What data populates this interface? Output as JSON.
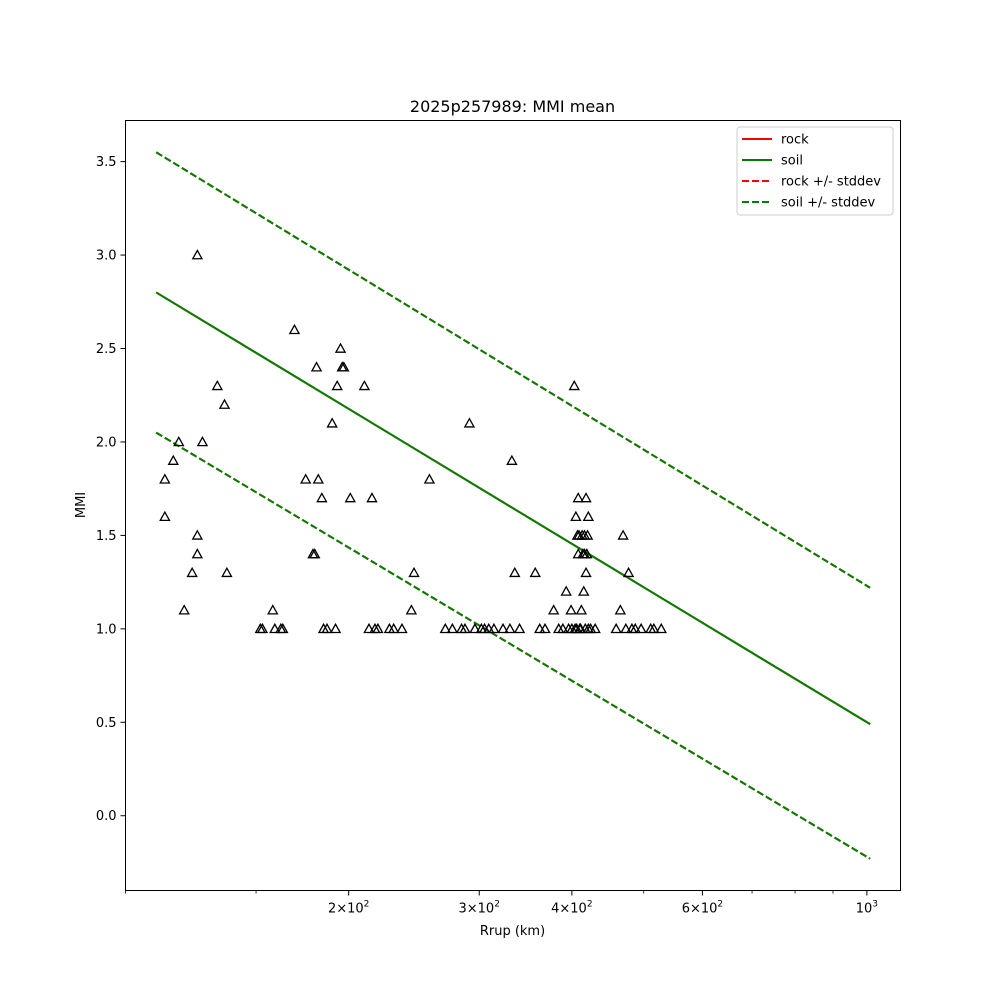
{
  "chart_data": {
    "type": "scatter",
    "title": "2025p257989: MMI mean",
    "xlabel": "Rrup (km)",
    "ylabel": "MMI",
    "xscale": "log",
    "xlim": [
      100,
      1110
    ],
    "ylim": [
      -0.4,
      3.72
    ],
    "grid": false,
    "legend_position": "top-right",
    "x_ticks": [
      {
        "value": 200,
        "label": "2",
        "exp": "2"
      },
      {
        "value": 300,
        "label": "3",
        "exp": "2"
      },
      {
        "value": 400,
        "label": "4",
        "exp": "2"
      },
      {
        "value": 600,
        "label": "6",
        "exp": "2"
      },
      {
        "value": 1000,
        "label": "",
        "exp": "3"
      }
    ],
    "x_minor_ticks": [
      500,
      700,
      800,
      900
    ],
    "y_ticks": [
      {
        "value": 0.0,
        "label": "0.0"
      },
      {
        "value": 0.5,
        "label": "0.5"
      },
      {
        "value": 1.0,
        "label": "1.0"
      },
      {
        "value": 1.5,
        "label": "1.5"
      },
      {
        "value": 2.0,
        "label": "2.0"
      },
      {
        "value": 2.5,
        "label": "2.5"
      },
      {
        "value": 3.0,
        "label": "3.0"
      },
      {
        "value": 3.5,
        "label": "3.5"
      }
    ],
    "lines": [
      {
        "name": "rock",
        "color": "#ff0000",
        "style": "solid",
        "points": [
          [
            110,
            2.8
          ],
          [
            1010,
            0.49
          ]
        ]
      },
      {
        "name": "soil",
        "color": "#008000",
        "style": "solid",
        "points": [
          [
            110,
            2.8
          ],
          [
            1010,
            0.49
          ]
        ]
      },
      {
        "name": "rock +/- stddev",
        "color": "#ff0000",
        "style": "dashed",
        "points": [
          [
            110,
            3.55
          ],
          [
            1010,
            1.22
          ]
        ],
        "points2": [
          [
            110,
            2.05
          ],
          [
            1010,
            -0.23
          ]
        ]
      },
      {
        "name": "soil +/- stddev",
        "color": "#008000",
        "style": "dashed",
        "points": [
          [
            110,
            3.55
          ],
          [
            1010,
            1.22
          ]
        ],
        "points2": [
          [
            110,
            2.05
          ],
          [
            1010,
            -0.23
          ]
        ]
      }
    ],
    "observations": {
      "marker": "triangle",
      "color": "#000000",
      "points": [
        [
          113,
          1.8
        ],
        [
          113,
          1.6
        ],
        [
          116,
          1.9
        ],
        [
          118,
          2.0
        ],
        [
          120,
          1.1
        ],
        [
          123,
          1.3
        ],
        [
          125,
          3.0
        ],
        [
          125,
          1.5
        ],
        [
          125,
          1.4
        ],
        [
          127,
          2.0
        ],
        [
          133,
          2.3
        ],
        [
          136,
          2.2
        ],
        [
          137,
          1.3
        ],
        [
          152,
          1.0
        ],
        [
          153,
          1.0
        ],
        [
          158,
          1.1
        ],
        [
          159,
          1.0
        ],
        [
          162,
          1.0
        ],
        [
          163,
          1.0
        ],
        [
          169,
          2.6
        ],
        [
          175,
          1.8
        ],
        [
          179,
          1.4
        ],
        [
          180,
          1.4
        ],
        [
          181,
          2.4
        ],
        [
          182,
          1.8
        ],
        [
          184,
          1.7
        ],
        [
          185,
          1.0
        ],
        [
          187,
          1.0
        ],
        [
          190,
          2.1
        ],
        [
          192,
          1.0
        ],
        [
          193,
          2.3
        ],
        [
          195,
          2.5
        ],
        [
          196,
          2.4
        ],
        [
          197,
          2.4
        ],
        [
          201,
          1.7
        ],
        [
          210,
          2.3
        ],
        [
          213,
          1.0
        ],
        [
          215,
          1.7
        ],
        [
          217,
          1.0
        ],
        [
          219,
          1.0
        ],
        [
          227,
          1.0
        ],
        [
          230,
          1.0
        ],
        [
          236,
          1.0
        ],
        [
          243,
          1.1
        ],
        [
          245,
          1.3
        ],
        [
          257,
          1.8
        ],
        [
          270,
          1.0
        ],
        [
          276,
          1.0
        ],
        [
          284,
          1.0
        ],
        [
          287,
          1.0
        ],
        [
          291,
          2.1
        ],
        [
          296,
          1.0
        ],
        [
          302,
          1.0
        ],
        [
          305,
          1.0
        ],
        [
          309,
          1.0
        ],
        [
          314,
          1.0
        ],
        [
          323,
          1.0
        ],
        [
          330,
          1.0
        ],
        [
          332,
          1.9
        ],
        [
          335,
          1.3
        ],
        [
          340,
          1.0
        ],
        [
          357,
          1.3
        ],
        [
          362,
          1.0
        ],
        [
          368,
          1.0
        ],
        [
          378,
          1.1
        ],
        [
          384,
          1.0
        ],
        [
          389,
          1.0
        ],
        [
          393,
          1.2
        ],
        [
          396,
          1.0
        ],
        [
          399,
          1.1
        ],
        [
          400,
          1.0
        ],
        [
          403,
          2.3
        ],
        [
          404,
          1.0
        ],
        [
          405,
          1.6
        ],
        [
          406,
          1.0
        ],
        [
          407,
          1.5
        ],
        [
          408,
          1.4
        ],
        [
          408,
          1.7
        ],
        [
          409,
          1.5
        ],
        [
          410,
          1.0
        ],
        [
          411,
          1.0
        ],
        [
          412,
          1.1
        ],
        [
          413,
          1.5
        ],
        [
          414,
          1.4
        ],
        [
          415,
          1.2
        ],
        [
          416,
          1.4
        ],
        [
          416,
          1.5
        ],
        [
          417,
          1.0
        ],
        [
          418,
          1.3
        ],
        [
          418,
          1.7
        ],
        [
          419,
          1.4
        ],
        [
          420,
          1.5
        ],
        [
          421,
          1.6
        ],
        [
          421,
          1.0
        ],
        [
          424,
          1.0
        ],
        [
          430,
          1.0
        ],
        [
          459,
          1.0
        ],
        [
          465,
          1.1
        ],
        [
          469,
          1.5
        ],
        [
          473,
          1.0
        ],
        [
          477,
          1.3
        ],
        [
          482,
          1.0
        ],
        [
          487,
          1.0
        ],
        [
          496,
          1.0
        ],
        [
          511,
          1.0
        ],
        [
          516,
          1.0
        ],
        [
          528,
          1.0
        ]
      ]
    }
  }
}
